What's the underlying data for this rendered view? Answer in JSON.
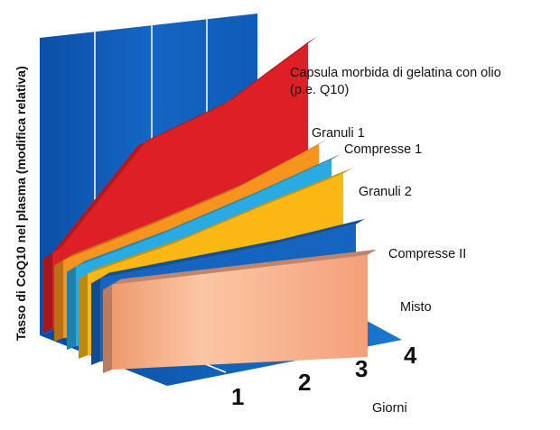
{
  "chart_data": {
    "type": "area",
    "style": "3d-stacked-ribbons",
    "ylabel": "Tasso di CoQ10 nel plasma (modifica relativa)",
    "xlabel": "Giorni",
    "x": [
      1,
      2,
      3,
      4
    ],
    "series": [
      {
        "name": "Capsula morbida di gelatina con olio",
        "name_line2": "(p.e. Q10)",
        "color": "#dd1f26",
        "values": [
          0.1,
          0.55,
          0.7,
          0.95
        ]
      },
      {
        "name": "Granuli 1",
        "color": "#f7941d",
        "values": [
          0.1,
          0.22,
          0.35,
          0.52
        ]
      },
      {
        "name": "Compresse 1",
        "color": "#29abe2",
        "values": [
          0.1,
          0.21,
          0.34,
          0.48
        ]
      },
      {
        "name": "Granuli 2",
        "color": "#fbb814",
        "values": [
          0.1,
          0.2,
          0.33,
          0.45
        ]
      },
      {
        "name": "Compresse II",
        "color": "#1565c0",
        "values": [
          0.1,
          0.14,
          0.18,
          0.24
        ]
      },
      {
        "name": "Misto",
        "color": "#f4a582",
        "values": [
          0.1,
          0.11,
          0.12,
          0.13
        ]
      }
    ],
    "grid": true,
    "legend": "right (direct labels)"
  }
}
